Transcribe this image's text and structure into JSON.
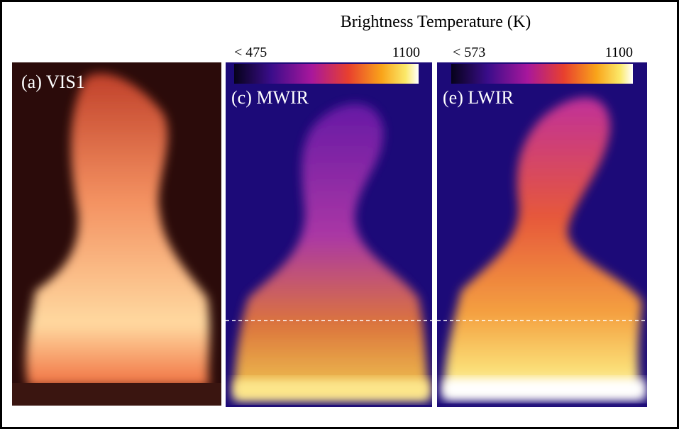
{
  "title": "Brightness Temperature (K)",
  "panels": [
    {
      "label": "(a) VIS1"
    },
    {
      "label": "(c) MWIR",
      "colorbar": {
        "min_label": "< 475",
        "max_label": "1100"
      }
    },
    {
      "label": "(e) LWIR",
      "colorbar": {
        "min_label": "< 573",
        "max_label": "1100"
      }
    }
  ]
}
